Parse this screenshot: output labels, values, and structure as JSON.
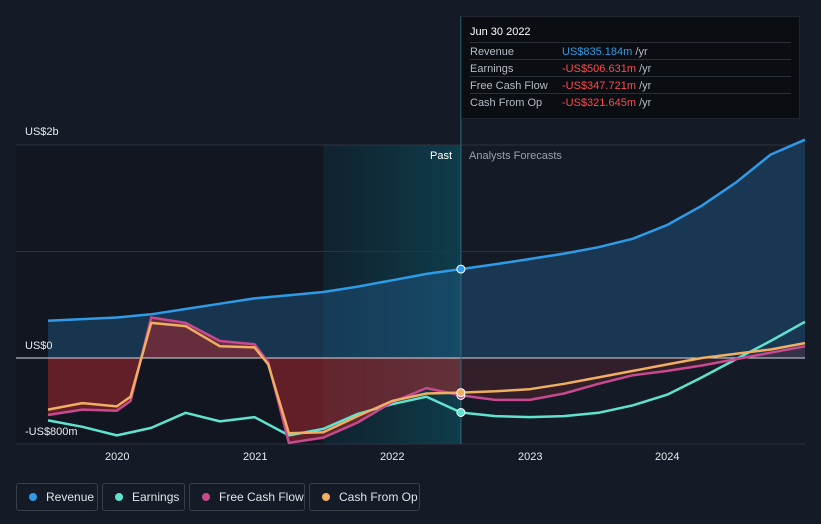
{
  "tooltip": {
    "date": "Jun 30 2022",
    "rows": [
      {
        "label": "Revenue",
        "value": "US$835.184m",
        "unit": "/yr",
        "color": "#2f9be8"
      },
      {
        "label": "Earnings",
        "value": "-US$506.631m",
        "unit": "/yr",
        "color": "#ff4a4a"
      },
      {
        "label": "Free Cash Flow",
        "value": "-US$347.721m",
        "unit": "/yr",
        "color": "#ff4a4a"
      },
      {
        "label": "Cash From Op",
        "value": "-US$321.645m",
        "unit": "/yr",
        "color": "#ff4a4a"
      }
    ]
  },
  "labels": {
    "past": "Past",
    "forecast": "Analysts Forecasts"
  },
  "legend": [
    {
      "label": "Revenue",
      "color": "#2f9be8"
    },
    {
      "label": "Earnings",
      "color": "#5fe3cf"
    },
    {
      "label": "Free Cash Flow",
      "color": "#c8498f"
    },
    {
      "label": "Cash From Op",
      "color": "#f0ae62"
    }
  ],
  "chart_data": {
    "type": "line",
    "y_unit": "US$m",
    "ylim": [
      -800,
      2000
    ],
    "y_ticks": [
      {
        "value": 2000,
        "label": "US$2b"
      },
      {
        "value": 0,
        "label": "US$0"
      },
      {
        "value": -800,
        "label": "-US$800m"
      }
    ],
    "x_ticks": [
      "2020",
      "2021",
      "2022",
      "2023",
      "2024"
    ],
    "xlim": [
      2019.5,
      2025.0
    ],
    "past_end": 2022.5,
    "past_highlight_start": 2021.5,
    "grid": true,
    "legend_position": "bottom",
    "series": [
      {
        "name": "Revenue",
        "color": "#2f9be8",
        "points": [
          [
            2019.5,
            350
          ],
          [
            2019.75,
            365
          ],
          [
            2020,
            380
          ],
          [
            2020.25,
            410
          ],
          [
            2020.5,
            460
          ],
          [
            2020.75,
            510
          ],
          [
            2021,
            560
          ],
          [
            2021.25,
            590
          ],
          [
            2021.5,
            620
          ],
          [
            2021.75,
            670
          ],
          [
            2022,
            730
          ],
          [
            2022.25,
            790
          ],
          [
            2022.5,
            835
          ],
          [
            2022.75,
            880
          ],
          [
            2023,
            930
          ],
          [
            2023.25,
            980
          ],
          [
            2023.5,
            1040
          ],
          [
            2023.75,
            1120
          ],
          [
            2024,
            1250
          ],
          [
            2024.25,
            1430
          ],
          [
            2024.5,
            1650
          ],
          [
            2024.75,
            1910
          ],
          [
            2025,
            2050
          ]
        ]
      },
      {
        "name": "Earnings",
        "color": "#5fe3cf",
        "points": [
          [
            2019.5,
            -580
          ],
          [
            2019.75,
            -640
          ],
          [
            2020,
            -720
          ],
          [
            2020.25,
            -650
          ],
          [
            2020.5,
            -510
          ],
          [
            2020.75,
            -590
          ],
          [
            2021,
            -550
          ],
          [
            2021.25,
            -720
          ],
          [
            2021.5,
            -660
          ],
          [
            2021.75,
            -520
          ],
          [
            2022,
            -430
          ],
          [
            2022.25,
            -360
          ],
          [
            2022.5,
            -507
          ],
          [
            2022.75,
            -540
          ],
          [
            2023,
            -550
          ],
          [
            2023.25,
            -540
          ],
          [
            2023.5,
            -510
          ],
          [
            2023.75,
            -440
          ],
          [
            2024,
            -340
          ],
          [
            2024.25,
            -180
          ],
          [
            2024.5,
            -10
          ],
          [
            2024.75,
            160
          ],
          [
            2025,
            340
          ]
        ]
      },
      {
        "name": "Free Cash Flow",
        "color": "#c8498f",
        "points": [
          [
            2019.5,
            -530
          ],
          [
            2019.75,
            -480
          ],
          [
            2020,
            -490
          ],
          [
            2020.1,
            -400
          ],
          [
            2020.25,
            380
          ],
          [
            2020.5,
            330
          ],
          [
            2020.75,
            160
          ],
          [
            2021,
            130
          ],
          [
            2021.1,
            -40
          ],
          [
            2021.25,
            -790
          ],
          [
            2021.5,
            -740
          ],
          [
            2021.75,
            -600
          ],
          [
            2022,
            -410
          ],
          [
            2022.25,
            -280
          ],
          [
            2022.5,
            -348
          ],
          [
            2022.75,
            -390
          ],
          [
            2023,
            -390
          ],
          [
            2023.25,
            -330
          ],
          [
            2023.5,
            -240
          ],
          [
            2023.75,
            -160
          ],
          [
            2024,
            -120
          ],
          [
            2024.25,
            -70
          ],
          [
            2024.5,
            -10
          ],
          [
            2024.75,
            50
          ],
          [
            2025,
            110
          ]
        ]
      },
      {
        "name": "Cash From Op",
        "color": "#f0ae62",
        "points": [
          [
            2019.5,
            -480
          ],
          [
            2019.75,
            -420
          ],
          [
            2020,
            -450
          ],
          [
            2020.1,
            -360
          ],
          [
            2020.25,
            330
          ],
          [
            2020.5,
            300
          ],
          [
            2020.75,
            110
          ],
          [
            2021,
            100
          ],
          [
            2021.1,
            -60
          ],
          [
            2021.25,
            -700
          ],
          [
            2021.5,
            -690
          ],
          [
            2021.75,
            -540
          ],
          [
            2022,
            -400
          ],
          [
            2022.25,
            -330
          ],
          [
            2022.5,
            -322
          ],
          [
            2022.75,
            -310
          ],
          [
            2023,
            -290
          ],
          [
            2023.25,
            -240
          ],
          [
            2023.5,
            -180
          ],
          [
            2023.75,
            -120
          ],
          [
            2024,
            -60
          ],
          [
            2024.25,
            0
          ],
          [
            2024.5,
            40
          ],
          [
            2024.75,
            80
          ],
          [
            2025,
            140
          ]
        ]
      }
    ]
  }
}
